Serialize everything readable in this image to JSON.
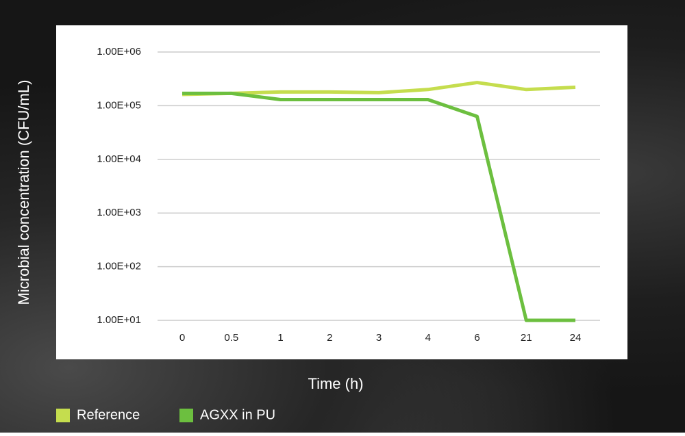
{
  "chart_data": {
    "type": "line",
    "y_label": "Microbial concentration (CFU/mL)",
    "x_label": "Time (h)",
    "categories": [
      "0",
      "0.5",
      "1",
      "2",
      "3",
      "4",
      "6",
      "21",
      "24"
    ],
    "series": [
      {
        "name": "Reference",
        "color": "#c5dd4e",
        "values": [
          162000,
          170000,
          180000,
          180000,
          175000,
          200000,
          270000,
          200000,
          220000
        ]
      },
      {
        "name": "AGXX in PU",
        "color": "#6cbf3f",
        "values": [
          170000,
          170000,
          130000,
          130000,
          130000,
          130000,
          63000,
          10,
          10
        ]
      }
    ],
    "ylim": [
      10,
      1000000
    ],
    "yticks": [
      {
        "value": 1000000,
        "label": "1.00E+06"
      },
      {
        "value": 100000,
        "label": "1.00E+05"
      },
      {
        "value": 10000,
        "label": "1.00E+04"
      },
      {
        "value": 1000,
        "label": "1.00E+03"
      },
      {
        "value": 100,
        "label": "1.00E+02"
      },
      {
        "value": 10,
        "label": "1.00E+01"
      }
    ],
    "log_scale": true,
    "grid": true,
    "legend": "bottom-left"
  }
}
